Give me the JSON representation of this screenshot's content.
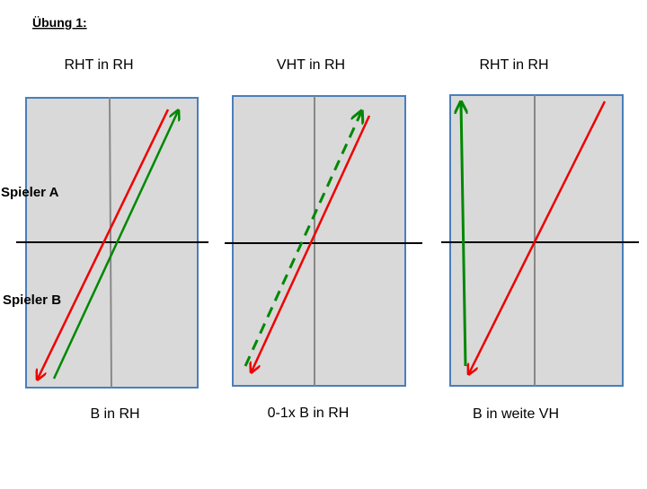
{
  "title": "Übung 1:",
  "row_labels": [
    "Spieler A",
    "Spieler B"
  ],
  "panels": [
    {
      "top": "RHT in RH",
      "bottom": "B in RH"
    },
    {
      "top": "VHT in RH",
      "bottom": "0-1x B in RH"
    },
    {
      "top": "RHT in RH",
      "bottom": "B in weite VH"
    }
  ]
}
